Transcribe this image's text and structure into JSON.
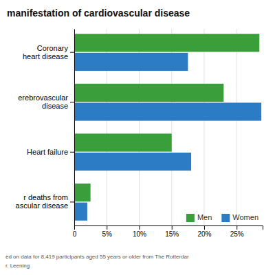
{
  "chart_data": {
    "type": "bar",
    "orientation": "horizontal",
    "title": "manifestation of cardiovascular disease",
    "categories": [
      "Coronary\nheart disease",
      "erebrovascular\n    disease",
      "Heart failure",
      "r deaths from\nascular disease"
    ],
    "series": [
      {
        "name": "Men",
        "color": "#3a9e3a",
        "values": [
          28.5,
          23.0,
          15.0,
          2.5
        ]
      },
      {
        "name": "Women",
        "color": "#2b7cc4",
        "values": [
          17.5,
          28.8,
          18.0,
          2.0
        ]
      }
    ],
    "xlim": [
      0,
      29
    ],
    "xticks": [
      0,
      {
        "value": 5,
        "label": "5%"
      },
      {
        "value": 10,
        "label": "10%"
      },
      {
        "value": 15,
        "label": "15%"
      },
      {
        "value": 20,
        "label": "20%"
      },
      {
        "value": 25,
        "label": "25%"
      }
    ],
    "grid": true,
    "legend": "lower-right",
    "annotations": [
      "ed on data for 8,419 participants aged 55 years or older from The Rotterdar",
      "r. Leening"
    ]
  }
}
